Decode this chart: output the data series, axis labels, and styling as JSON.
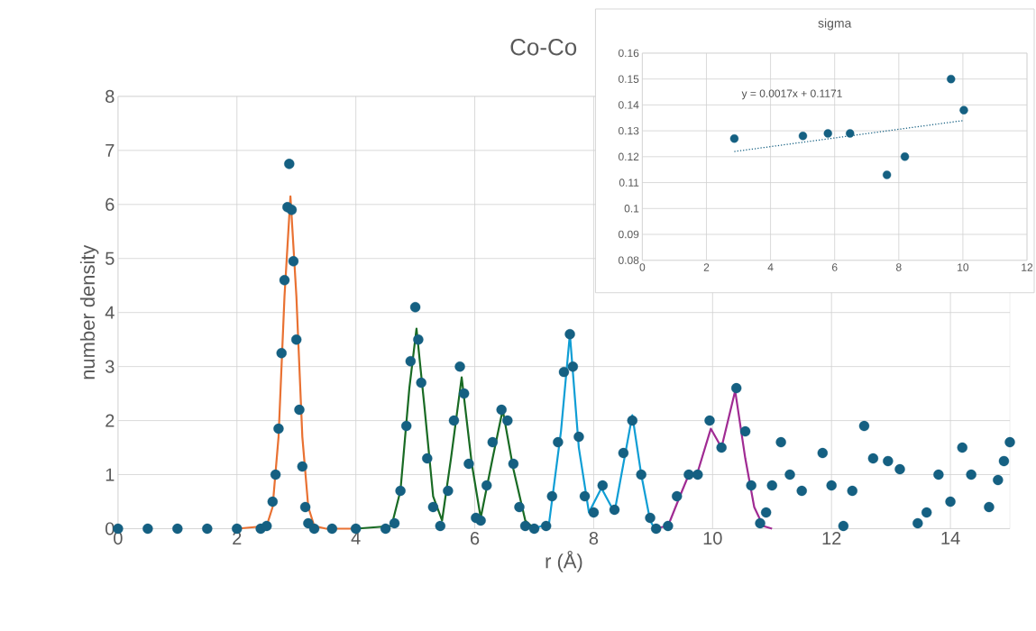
{
  "chart_data": [
    {
      "type": "scatter",
      "title": "Co-Co",
      "xlabel": "r (Å)",
      "ylabel": "number density",
      "xlim": [
        0,
        15
      ],
      "ylim": [
        0,
        8
      ],
      "xticks": [
        0,
        2,
        4,
        6,
        8,
        10,
        12,
        14
      ],
      "yticks": [
        0,
        1,
        2,
        3,
        4,
        5,
        6,
        7,
        8
      ],
      "grid": true,
      "series": [
        {
          "type": "scatter",
          "color": "#156082",
          "marker": "circle",
          "x": [
            0,
            0.5,
            1,
            1.5,
            2,
            2.4,
            2.5,
            2.6,
            2.65,
            2.7,
            2.75,
            2.8,
            2.85,
            2.88,
            2.92,
            2.95,
            3.0,
            3.05,
            3.1,
            3.15,
            3.2,
            3.3,
            3.6,
            4.0,
            4.5,
            4.65,
            4.75,
            4.85,
            4.92,
            5.0,
            5.05,
            5.1,
            5.2,
            5.3,
            5.42,
            5.55,
            5.65,
            5.75,
            5.82,
            5.9,
            6.02,
            6.1,
            6.2,
            6.3,
            6.45,
            6.55,
            6.65,
            6.75,
            6.85,
            7.0,
            7.2,
            7.3,
            7.4,
            7.5,
            7.6,
            7.65,
            7.75,
            7.85,
            8.0,
            8.15,
            8.35,
            8.5,
            8.65,
            8.8,
            8.95,
            9.05,
            9.25,
            9.4,
            9.6,
            9.75,
            9.95,
            10.15,
            10.4,
            10.55,
            10.65,
            10.8,
            10.9,
            11.0,
            11.15,
            11.3,
            11.5,
            11.85,
            12.0,
            12.2,
            12.35,
            12.55,
            12.7,
            12.95,
            13.15,
            13.45,
            13.6,
            13.8,
            14.0,
            14.2,
            14.35,
            14.65,
            14.8,
            14.9,
            15.0
          ],
          "values": [
            0,
            0,
            0,
            0,
            0,
            0,
            0.05,
            0.5,
            1.0,
            1.85,
            3.25,
            4.6,
            5.95,
            6.75,
            5.9,
            4.95,
            3.5,
            2.2,
            1.15,
            0.4,
            0.1,
            0,
            0,
            0,
            0,
            0.1,
            0.7,
            1.9,
            3.1,
            4.1,
            3.5,
            2.7,
            1.3,
            0.4,
            0.05,
            0.7,
            2.0,
            3.0,
            2.5,
            1.2,
            0.2,
            0.15,
            0.8,
            1.6,
            2.2,
            2.0,
            1.2,
            0.4,
            0.05,
            0,
            0.05,
            0.6,
            1.6,
            2.9,
            3.6,
            3.0,
            1.7,
            0.6,
            0.3,
            0.8,
            0.35,
            1.4,
            2.0,
            1.0,
            0.2,
            0,
            0.05,
            0.6,
            1.0,
            1.0,
            2.0,
            1.5,
            2.6,
            1.8,
            0.8,
            0.1,
            0.3,
            0.8,
            1.6,
            1.0,
            0.7,
            1.4,
            0.8,
            0.05,
            0.7,
            1.9,
            1.3,
            1.25,
            1.1,
            0.1,
            0.3,
            1.0,
            0.5,
            1.5,
            1.0,
            0.4,
            0.9,
            1.25,
            1.6
          ]
        },
        {
          "type": "line",
          "color": "#e97132",
          "marker": "none",
          "line_style": "solid",
          "x": [
            2,
            2.5,
            2.6,
            2.7,
            2.8,
            2.9,
            3.0,
            3.1,
            3.2,
            3.3,
            3.5,
            4
          ],
          "values": [
            0,
            0.05,
            0.4,
            1.7,
            4.3,
            6.15,
            4.3,
            1.7,
            0.4,
            0.05,
            0,
            0
          ]
        },
        {
          "type": "line",
          "color": "#196b24",
          "marker": "none",
          "line_style": "solid",
          "x": [
            4,
            4.6,
            4.75,
            4.9,
            5.02,
            5.15,
            5.3,
            5.45,
            5.6,
            5.78,
            5.95,
            6.1,
            6.3,
            6.47,
            6.65,
            6.85,
            7.0
          ],
          "values": [
            0,
            0.05,
            0.7,
            2.6,
            3.7,
            2.3,
            0.6,
            0.15,
            1.3,
            2.8,
            1.2,
            0.2,
            1.3,
            2.2,
            1.1,
            0.15,
            0
          ]
        },
        {
          "type": "line",
          "color": "#0f9ed5",
          "marker": "none",
          "line_style": "solid",
          "x": [
            7,
            7.25,
            7.45,
            7.6,
            7.75,
            7.92,
            8.13,
            8.35,
            8.5,
            8.65,
            8.8,
            8.95,
            9.0
          ],
          "values": [
            0,
            0.1,
            1.8,
            3.6,
            1.5,
            0.3,
            0.75,
            0.3,
            1.2,
            2.1,
            1.0,
            0.15,
            0.05
          ]
        },
        {
          "type": "line",
          "color": "#a02b93",
          "marker": "none",
          "line_style": "solid",
          "x": [
            9,
            9.25,
            9.45,
            9.6,
            9.75,
            9.97,
            10.15,
            10.38,
            10.55,
            10.7,
            10.85,
            11
          ],
          "values": [
            0,
            0.05,
            0.6,
            1.0,
            1.05,
            1.85,
            1.5,
            2.55,
            1.3,
            0.4,
            0.05,
            0
          ]
        }
      ]
    },
    {
      "type": "scatter",
      "title": "sigma",
      "xlim": [
        0,
        12
      ],
      "ylim": [
        0.08,
        0.16
      ],
      "xticks": [
        0,
        2,
        4,
        6,
        8,
        10,
        12
      ],
      "yticks": [
        0.08,
        0.09,
        0.1,
        0.11,
        0.12,
        0.13,
        0.14,
        0.15,
        0.16
      ],
      "grid": true,
      "annotations": [
        "y = 0.0017x + 0.1171"
      ],
      "series": [
        {
          "type": "scatter",
          "color": "#156082",
          "marker": "circle",
          "x": [
            2.87,
            5.01,
            5.79,
            6.48,
            7.63,
            8.19,
            9.63,
            10.03
          ],
          "values": [
            0.127,
            0.128,
            0.129,
            0.129,
            0.113,
            0.12,
            0.15,
            0.138
          ]
        },
        {
          "type": "line",
          "color": "#156082",
          "marker": "none",
          "line_style": "dotted",
          "x": [
            2.87,
            10.03
          ],
          "values": [
            0.122,
            0.134
          ]
        }
      ]
    }
  ]
}
